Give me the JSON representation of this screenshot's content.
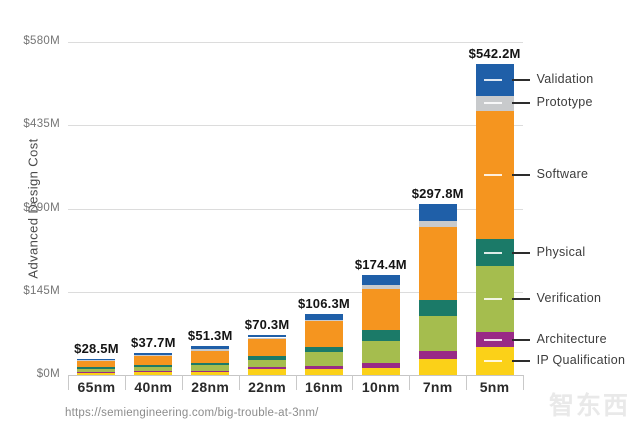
{
  "chart_data": {
    "type": "bar",
    "variant": "stacked",
    "title": "",
    "ylabel": "Advanced Design Cost",
    "xlabel": "",
    "ylim": [
      0,
      580
    ],
    "grid": true,
    "legend_position": "right",
    "categories": [
      "65nm",
      "40nm",
      "28nm",
      "22nm",
      "16nm",
      "10nm",
      "7nm",
      "5nm"
    ],
    "totals": [
      28.5,
      37.7,
      51.3,
      70.3,
      106.3,
      174.4,
      297.8,
      542.2
    ],
    "totals_labels": [
      "$28.5M",
      "$37.7M",
      "$51.3M",
      "$70.3M",
      "$106.3M",
      "$174.4M",
      "$297.8M",
      "$542.2M"
    ],
    "y_ticks": [
      {
        "label": "$0M",
        "value": 0
      },
      {
        "label": "$145M",
        "value": 145
      },
      {
        "label": "$290M",
        "value": 290
      },
      {
        "label": "$435M",
        "value": 435
      },
      {
        "label": "$580M",
        "value": 580
      }
    ],
    "series": [
      {
        "name": "IP Qualification",
        "color": "#fbd118",
        "values": [
          3.5,
          4.5,
          5.0,
          10.0,
          11.0,
          12.0,
          27.0,
          48.0
        ]
      },
      {
        "name": "Architecture",
        "color": "#992a86",
        "values": [
          1.5,
          2.0,
          2.5,
          3.5,
          4.0,
          9.0,
          14.0,
          27.0
        ]
      },
      {
        "name": "Verification",
        "color": "#a5bd4e",
        "values": [
          6.0,
          8.0,
          10.5,
          13.0,
          25.0,
          38.0,
          62.0,
          114.0
        ]
      },
      {
        "name": "Physical",
        "color": "#1b7a68",
        "values": [
          2.5,
          3.2,
          3.5,
          6.0,
          9.0,
          20.0,
          27.0,
          48.0
        ]
      },
      {
        "name": "Software",
        "color": "#f5951f",
        "values": [
          11.0,
          15.0,
          21.0,
          30.0,
          45.0,
          71.0,
          127.0,
          223.0
        ]
      },
      {
        "name": "Prototype",
        "color": "#c8cacc",
        "values": [
          1.5,
          2.0,
          2.3,
          2.8,
          2.3,
          6.0,
          12.0,
          26.0
        ]
      },
      {
        "name": "Validation",
        "color": "#1f5fa8",
        "values": [
          2.5,
          3.0,
          6.5,
          5.0,
          10.0,
          18.4,
          28.8,
          56.2
        ]
      }
    ],
    "units": "$M"
  },
  "footer": {
    "source_url": "https://semiengineering.com/big-trouble-at-3nm/"
  },
  "watermark": "智东西",
  "colors": {
    "gridline": "#dcdcdc",
    "axis": "#c6c6c6",
    "value_label": "#141414",
    "tick_label": "#757575"
  }
}
